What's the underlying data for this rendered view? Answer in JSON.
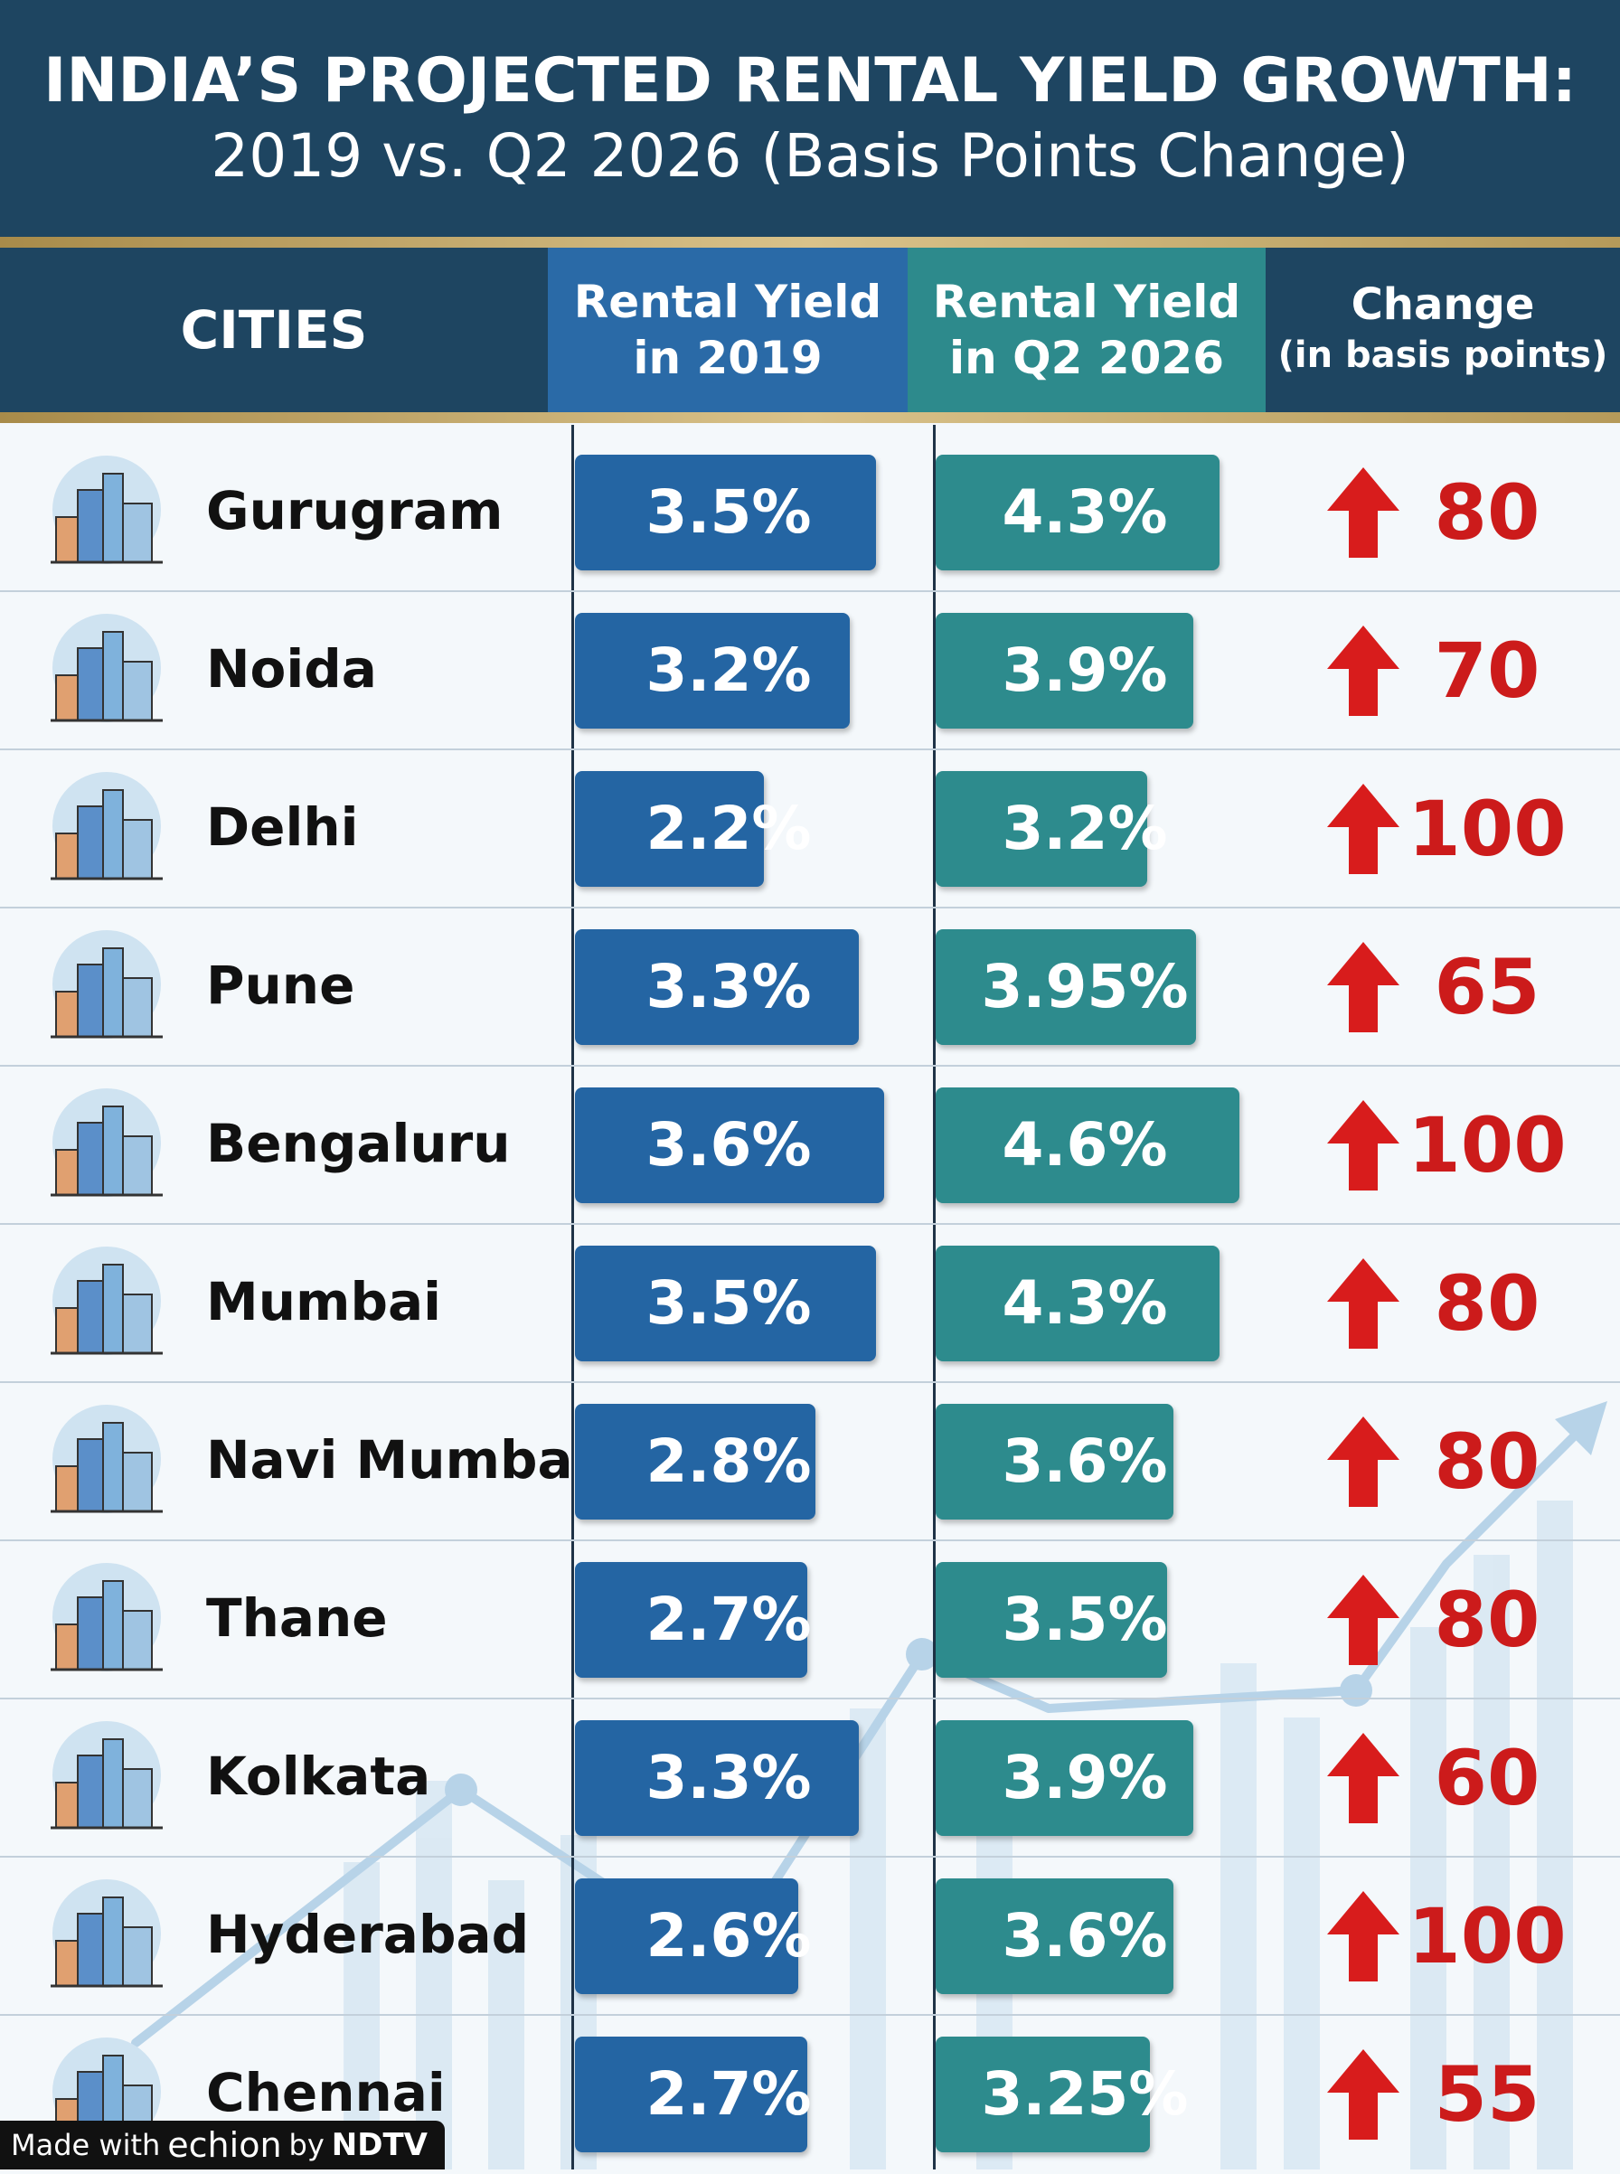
{
  "header": {
    "title_line1": "INDIA’S PROJECTED RENTAL YIELD GROWTH:",
    "title_line2": "2019 vs. Q2 2026 (Basis Points Change)"
  },
  "columns": {
    "city": "CITIES",
    "y2019_line1": "Rental Yield",
    "y2019_line2": "in 2019",
    "y2026_line1": "Rental Yield",
    "y2026_line2": "in Q2 2026",
    "change_line1": "Change",
    "change_line2": "(in basis points)"
  },
  "rows": [
    {
      "city": "Gurugram",
      "yield_2019": "3.5%",
      "yield_2026": "4.3%",
      "change": "80",
      "icon": "skyscrapers-icon"
    },
    {
      "city": "Noida",
      "yield_2019": "3.2%",
      "yield_2026": "3.9%",
      "change": "70",
      "icon": "office-towers-icon"
    },
    {
      "city": "Delhi",
      "yield_2019": "2.2%",
      "yield_2026": "3.2%",
      "change": "100",
      "icon": "monument-dome-icon"
    },
    {
      "city": "Pune",
      "yield_2019": "3.3%",
      "yield_2026": "3.95%",
      "change": "65",
      "icon": "city-blocks-icon"
    },
    {
      "city": "Bengaluru",
      "yield_2019": "3.6%",
      "yield_2026": "4.6%",
      "change": "100",
      "icon": "tower-cluster-icon"
    },
    {
      "city": "Mumbai",
      "yield_2019": "3.5%",
      "yield_2026": "4.3%",
      "change": "80",
      "icon": "highrise-icon"
    },
    {
      "city": "Navi Mumbai",
      "yield_2019": "2.8%",
      "yield_2026": "3.6%",
      "change": "80",
      "icon": "residential-towers-icon"
    },
    {
      "city": "Thane",
      "yield_2019": "2.7%",
      "yield_2026": "3.5%",
      "change": "80",
      "icon": "office-building-icon"
    },
    {
      "city": "Kolkata",
      "yield_2019": "3.3%",
      "yield_2026": "3.9%",
      "change": "60",
      "icon": "clock-tower-icon"
    },
    {
      "city": "Hyderabad",
      "yield_2019": "2.6%",
      "yield_2026": "3.6%",
      "change": "100",
      "icon": "charminar-icon"
    },
    {
      "city": "Chennai",
      "yield_2019": "2.7%",
      "yield_2026": "3.25%",
      "change": "55",
      "icon": "heritage-building-icon"
    }
  ],
  "chart_data": {
    "type": "table",
    "title": "INDIA’S PROJECTED RENTAL YIELD GROWTH: 2019 vs. Q2 2026 (Basis Points Change)",
    "columns": [
      "CITIES",
      "Rental Yield in 2019",
      "Rental Yield in Q2 2026",
      "Change (in basis points)"
    ],
    "categories": [
      "Gurugram",
      "Noida",
      "Delhi",
      "Pune",
      "Bengaluru",
      "Mumbai",
      "Navi Mumbai",
      "Thane",
      "Kolkata",
      "Hyderabad",
      "Chennai"
    ],
    "series": [
      {
        "name": "Rental Yield in 2019",
        "values": [
          3.5,
          3.2,
          2.2,
          3.3,
          3.6,
          3.5,
          2.8,
          2.7,
          3.3,
          2.6,
          2.7
        ]
      },
      {
        "name": "Rental Yield in Q2 2026",
        "values": [
          4.3,
          3.9,
          3.2,
          3.95,
          4.6,
          4.3,
          3.6,
          3.5,
          3.9,
          3.6,
          3.25
        ]
      },
      {
        "name": "Change (in basis points)",
        "values": [
          80,
          70,
          100,
          65,
          100,
          80,
          80,
          80,
          60,
          100,
          55
        ]
      }
    ]
  },
  "colors": {
    "header_bg": "#1e4561",
    "bar_2019": "#2465a3",
    "bar_2026": "#2d8b8d",
    "change_up": "#cc1b1b"
  },
  "footer": {
    "made_with": "Made with",
    "brand": "echion",
    "by": "by",
    "publisher": "NDTV"
  }
}
